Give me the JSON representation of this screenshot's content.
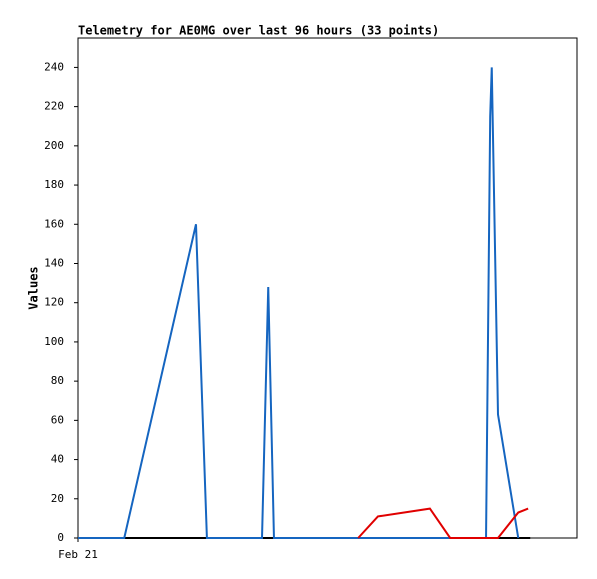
{
  "chart_data": {
    "type": "line",
    "title": "Telemetry for AE0MG over last 96 hours (33 points)",
    "y_label": "Values",
    "xlim": [
      0,
      96
    ],
    "xticks": [
      {
        "value": 0,
        "label": "Feb 21"
      }
    ],
    "ylim": [
      0,
      255
    ],
    "yticks": [
      0,
      20,
      40,
      60,
      80,
      100,
      120,
      140,
      160,
      180,
      200,
      220,
      240
    ],
    "grid": false,
    "series": [
      {
        "color": "#000000",
        "x": [
          0,
          87.0
        ],
        "values": [
          0,
          0
        ]
      },
      {
        "color": "#1565c0",
        "x": [
          0,
          8.9,
          22.7,
          24.8,
          35.4,
          36.6,
          37.7,
          78.5,
          79.3,
          79.6,
          80.8,
          84.7
        ],
        "values": [
          0,
          0,
          160,
          0,
          0,
          128,
          0,
          0,
          215,
          240,
          63,
          0
        ]
      },
      {
        "color": "#e00000",
        "x": [
          53.9,
          57.7,
          67.7,
          71.6,
          80.8,
          84.7,
          86.6
        ],
        "values": [
          0,
          11,
          15,
          0,
          0,
          13,
          15
        ]
      }
    ]
  }
}
